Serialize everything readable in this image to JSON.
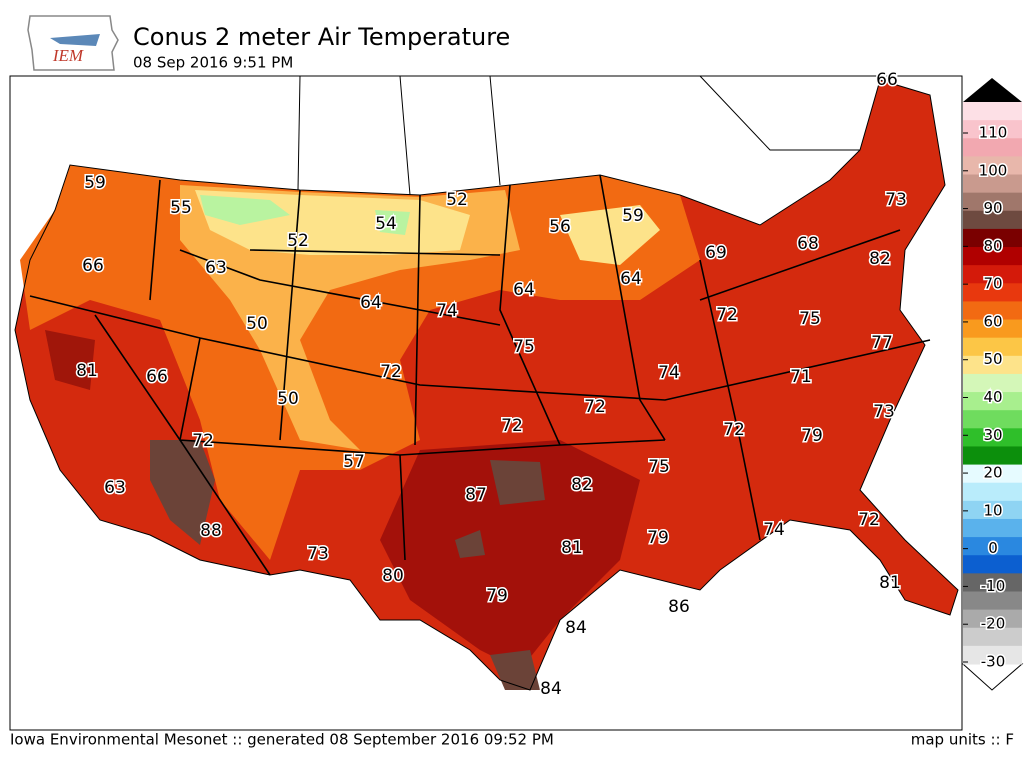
{
  "header": {
    "logo": "IEM",
    "title": "Conus 2 meter Air Temperature",
    "subtitle": "08 Sep 2016 9:51 PM"
  },
  "map": {
    "stations": [
      66,
      59,
      55,
      52,
      54,
      52,
      56,
      59,
      73,
      63,
      66,
      64,
      64,
      69,
      68,
      82,
      50,
      64,
      74,
      75,
      72,
      75,
      81,
      66,
      72,
      74,
      77,
      71,
      50,
      72,
      72,
      72,
      73,
      72,
      79,
      63,
      57,
      87,
      82,
      75,
      88,
      73,
      80,
      81,
      79,
      72,
      74,
      81,
      79,
      84,
      86,
      84
    ]
  },
  "colorbar": {
    "ticks": [
      110,
      100,
      90,
      80,
      70,
      60,
      50,
      40,
      30,
      20,
      10,
      0,
      -10,
      -20,
      -30
    ]
  },
  "footer": {
    "credit": "Iowa Environmental Mesonet :: generated 08 September 2016 09:52 PM",
    "units": "map units :: F"
  }
}
